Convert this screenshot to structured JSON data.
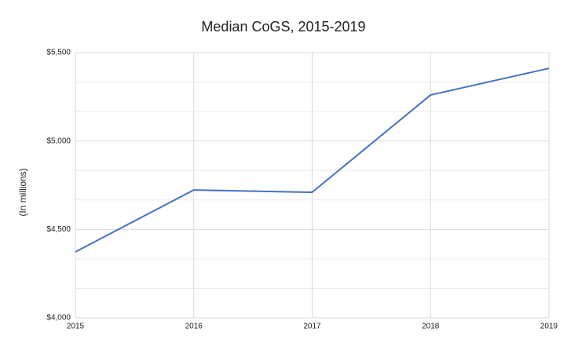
{
  "chart_data": {
    "type": "line",
    "title": "Median CoGS, 2015-2019",
    "y_label": "(In millions)",
    "x": [
      2015,
      2016,
      2017,
      2018,
      2019
    ],
    "series": [
      {
        "name": "Median CoGS",
        "color": "#4472c4",
        "values": [
          4373,
          4723,
          4710,
          5260,
          5411
        ]
      }
    ],
    "xlim": [
      2015,
      2019
    ],
    "xticks": [
      2015,
      2016,
      2017,
      2018,
      2019
    ],
    "ylim": [
      4000,
      5500
    ],
    "yticks": [
      {
        "value": 4000,
        "label": "$4,000"
      },
      {
        "value": 4500,
        "label": "$4,500"
      },
      {
        "value": 5000,
        "label": "$5,000"
      },
      {
        "value": 5500,
        "label": "$5,500"
      }
    ],
    "grid": true,
    "minor_grid_divisions": 3
  }
}
